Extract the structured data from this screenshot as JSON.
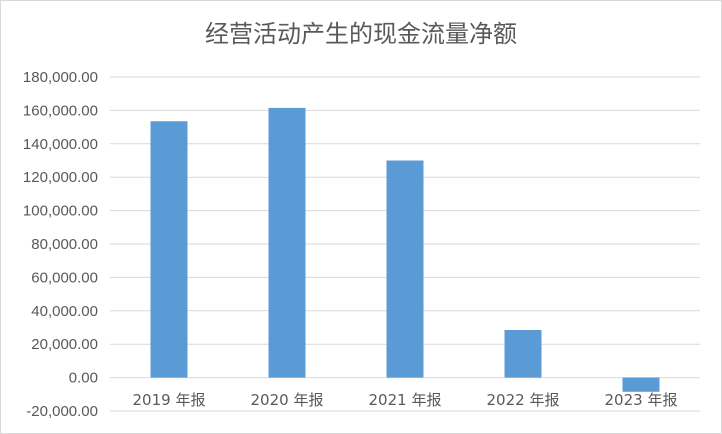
{
  "chart_data": {
    "type": "bar",
    "title": "经营活动产生的现金流量净额",
    "categories": [
      "2019 年报",
      "2020 年报",
      "2021 年报",
      "2022 年报",
      "2023 年报"
    ],
    "values": [
      153500,
      161500,
      130000,
      28500,
      -8500
    ],
    "ylim": [
      -20000,
      180000
    ],
    "yticks": [
      -20000,
      0,
      20000,
      40000,
      60000,
      80000,
      100000,
      120000,
      140000,
      160000,
      180000
    ],
    "ytick_labels": [
      "-20,000.00",
      "0.00",
      "20,000.00",
      "40,000.00",
      "60,000.00",
      "80,000.00",
      "100,000.00",
      "120,000.00",
      "140,000.00",
      "160,000.00",
      "180,000.00"
    ],
    "xlabel": "",
    "ylabel": "",
    "grid": true,
    "legend": "none",
    "bar_color": "#5b9bd5",
    "grid_color": "#d9d9d9"
  }
}
